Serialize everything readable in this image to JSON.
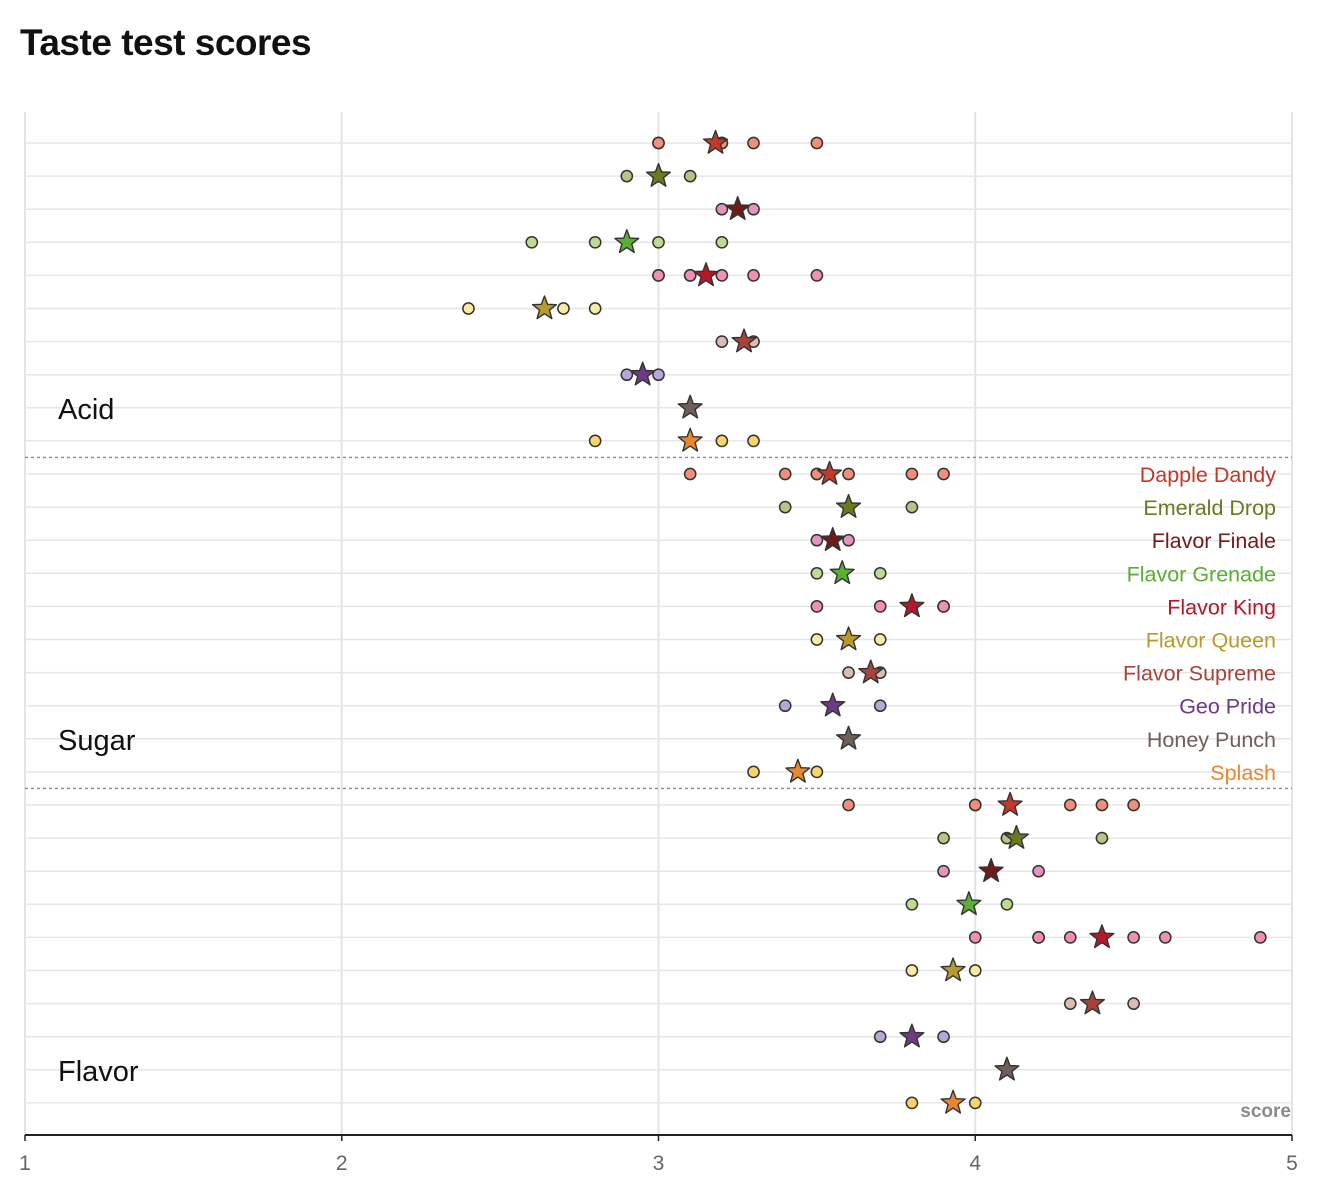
{
  "title": "Taste test scores",
  "chart_data": {
    "type": "scatter",
    "title": "Taste test scores",
    "xlabel": "score",
    "xlim": [
      1,
      5
    ],
    "x_ticks": [
      "1",
      "2",
      "3",
      "4",
      "5"
    ],
    "grid": true,
    "legend_position": "right, inside Sugar panel",
    "groups": [
      "Acid",
      "Sugar",
      "Flavor"
    ],
    "mean_marker": "star",
    "observation_marker": "circle",
    "series": [
      {
        "name": "Dapple Dandy",
        "color": "#c0392b",
        "point_color": "#f08f7a",
        "means": {
          "Acid": 3.18,
          "Sugar": 3.54,
          "Flavor": 4.11
        },
        "scores": {
          "Acid": [
            3.0,
            3.0,
            3.2,
            3.2,
            3.3,
            3.5
          ],
          "Sugar": [
            3.1,
            3.4,
            3.5,
            3.5,
            3.6,
            3.8,
            3.9
          ],
          "Flavor": [
            3.6,
            4.0,
            4.0,
            4.3,
            4.4,
            4.5
          ]
        }
      },
      {
        "name": "Emerald Drop",
        "color": "#6b7a1e",
        "point_color": "#b5c583",
        "means": {
          "Acid": 3.0,
          "Sugar": 3.6,
          "Flavor": 4.13
        },
        "scores": {
          "Acid": [
            2.9,
            3.0,
            3.1
          ],
          "Sugar": [
            3.4,
            3.6,
            3.8
          ],
          "Flavor": [
            3.9,
            4.1,
            4.4
          ]
        }
      },
      {
        "name": "Flavor Finale",
        "color": "#6e1b1b",
        "point_color": "#e394bd",
        "means": {
          "Acid": 3.25,
          "Sugar": 3.55,
          "Flavor": 4.05
        },
        "scores": {
          "Acid": [
            3.2,
            3.3
          ],
          "Sugar": [
            3.5,
            3.6
          ],
          "Flavor": [
            3.9,
            4.2
          ]
        }
      },
      {
        "name": "Flavor Grenade",
        "color": "#5aae34",
        "point_color": "#bedb91",
        "means": {
          "Acid": 2.9,
          "Sugar": 3.58,
          "Flavor": 3.98
        },
        "scores": {
          "Acid": [
            2.6,
            2.8,
            3.0,
            3.2
          ],
          "Sugar": [
            3.5,
            3.7
          ],
          "Flavor": [
            3.8,
            4.1
          ]
        }
      },
      {
        "name": "Flavor King",
        "color": "#b3182b",
        "point_color": "#f18fb5",
        "means": {
          "Acid": 3.15,
          "Sugar": 3.8,
          "Flavor": 4.4
        },
        "scores": {
          "Acid": [
            3.0,
            3.0,
            3.1,
            3.1,
            3.2,
            3.3,
            3.5
          ],
          "Sugar": [
            3.5,
            3.7,
            3.8,
            3.9,
            3.9
          ],
          "Flavor": [
            4.0,
            4.2,
            4.2,
            4.3,
            4.4,
            4.5,
            4.6,
            4.9
          ]
        }
      },
      {
        "name": "Flavor Queen",
        "color": "#b89a2a",
        "point_color": "#f8eba1",
        "means": {
          "Acid": 2.64,
          "Sugar": 3.6,
          "Flavor": 3.93
        },
        "scores": {
          "Acid": [
            2.4,
            2.7,
            2.8
          ],
          "Sugar": [
            3.5,
            3.7
          ],
          "Flavor": [
            3.8,
            4.0
          ]
        }
      },
      {
        "name": "Flavor Supreme",
        "color": "#a6443b",
        "point_color": "#d9bdb3",
        "means": {
          "Acid": 3.27,
          "Sugar": 3.67,
          "Flavor": 4.37
        },
        "scores": {
          "Acid": [
            3.2,
            3.3
          ],
          "Sugar": [
            3.6,
            3.7
          ],
          "Flavor": [
            4.3,
            4.5
          ]
        }
      },
      {
        "name": "Geo Pride",
        "color": "#6d3a85",
        "point_color": "#b7a6d6",
        "means": {
          "Acid": 2.95,
          "Sugar": 3.55,
          "Flavor": 3.8
        },
        "scores": {
          "Acid": [
            2.9,
            3.0
          ],
          "Sugar": [
            3.4,
            3.7
          ],
          "Flavor": [
            3.7,
            3.9
          ]
        }
      },
      {
        "name": "Honey Punch",
        "color": "#6f5f5a",
        "point_color": "#a3999a",
        "means": {
          "Acid": 3.1,
          "Sugar": 3.6,
          "Flavor": 4.1
        },
        "scores": {
          "Acid": [],
          "Sugar": [],
          "Flavor": []
        }
      },
      {
        "name": "Splash",
        "color": "#e8872f",
        "point_color": "#f8d46a",
        "means": {
          "Acid": 3.1,
          "Sugar": 3.44,
          "Flavor": 3.93
        },
        "scores": {
          "Acid": [
            2.8,
            3.2,
            3.3
          ],
          "Sugar": [
            3.3,
            3.5
          ],
          "Flavor": [
            3.8,
            4.0
          ]
        }
      }
    ]
  }
}
